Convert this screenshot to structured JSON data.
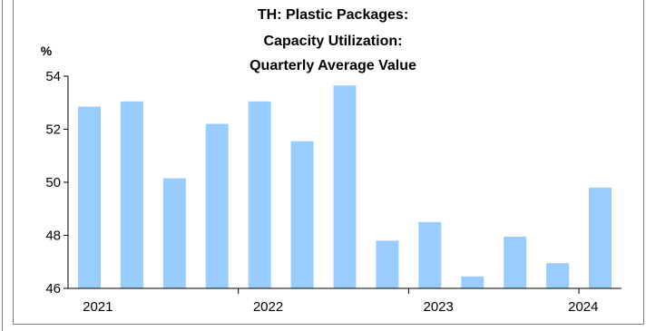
{
  "chart_data": {
    "type": "bar",
    "title_lines": [
      "TH: Plastic Packages:",
      "Capacity Utilization:",
      "Quarterly Average Value"
    ],
    "ylabel": "%",
    "ylim": [
      46,
      54
    ],
    "yticks": [
      46,
      48,
      50,
      52,
      54
    ],
    "xtick_labels": [
      "2021",
      "2022",
      "2023",
      "2024"
    ],
    "categories": [
      "2021Q1",
      "2021Q2",
      "2021Q3",
      "2021Q4",
      "2022Q1",
      "2022Q2",
      "2022Q3",
      "2022Q4",
      "2023Q1",
      "2023Q2",
      "2023Q3",
      "2023Q4",
      "2024Q1"
    ],
    "values": [
      52.85,
      53.05,
      50.15,
      52.2,
      53.05,
      51.55,
      53.65,
      47.8,
      48.5,
      46.45,
      47.95,
      46.95,
      49.8
    ],
    "bar_color": "#99ccff",
    "grid": false,
    "legend": "none"
  }
}
